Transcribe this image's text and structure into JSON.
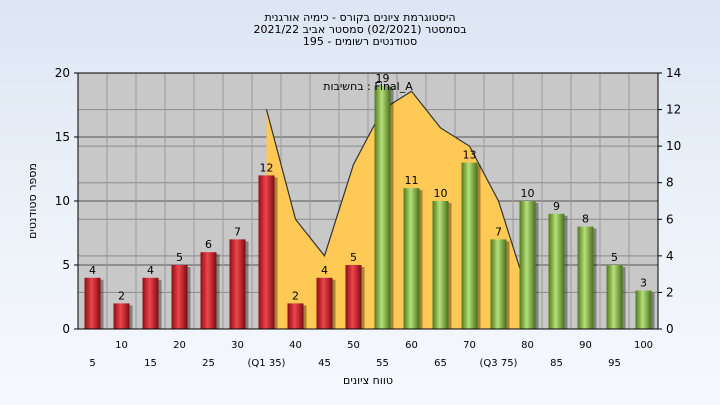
{
  "titles": {
    "line1": "היסטוגרמת ציונים בקורס - כימיה אורגנית",
    "line2": "בסמסטר  (02/2021)  סמסטר אביב 2021/22",
    "line3": "סטודנטים רשומים - 195"
  },
  "chart_data": {
    "type": "bar",
    "annotation": "בחשיבות : Final_A",
    "xlabel": "טווח ציונים",
    "ylabel": "מספר סטודנטים",
    "ylim": [
      0,
      20
    ],
    "y_ticks": [
      0,
      5,
      10,
      15,
      20
    ],
    "y2lim": [
      0,
      14
    ],
    "y2_ticks": [
      0,
      2,
      4,
      6,
      8,
      10,
      12,
      14
    ],
    "grid": true,
    "categories": [
      "5",
      "10",
      "15",
      "20",
      "25",
      "30",
      "35",
      "40",
      "45",
      "50",
      "55",
      "60",
      "65",
      "70",
      "75",
      "80",
      "85",
      "90",
      "95",
      "100"
    ],
    "x_tick_labels": [
      "5",
      "10",
      "15",
      "20",
      "25",
      "30",
      "(Q1 35)",
      "40",
      "45",
      "50",
      "55",
      "60",
      "65",
      "70",
      "(Q3 75)",
      "80",
      "85",
      "90",
      "95",
      "100"
    ],
    "values": [
      4,
      2,
      4,
      5,
      6,
      7,
      12,
      2,
      4,
      5,
      19,
      11,
      10,
      13,
      7,
      10,
      9,
      8,
      5,
      3
    ],
    "bar_groups": [
      "red",
      "red",
      "red",
      "red",
      "red",
      "red",
      "red",
      "red",
      "red",
      "red",
      "green",
      "green",
      "green",
      "green",
      "green",
      "green",
      "green",
      "green",
      "green",
      "green"
    ],
    "area_series": {
      "x": [
        "35",
        "40",
        "45",
        "50",
        "55",
        "60",
        "65",
        "70",
        "75",
        "80"
      ],
      "values": [
        12,
        6,
        4,
        9,
        12,
        13,
        11,
        10,
        7,
        2
      ]
    },
    "colors": {
      "plot_bg": "#c8c8c8",
      "area": "#ffc955",
      "area_line": "#333333",
      "red_bar": "#e0303a",
      "green_bar": "#8cc63f"
    }
  }
}
